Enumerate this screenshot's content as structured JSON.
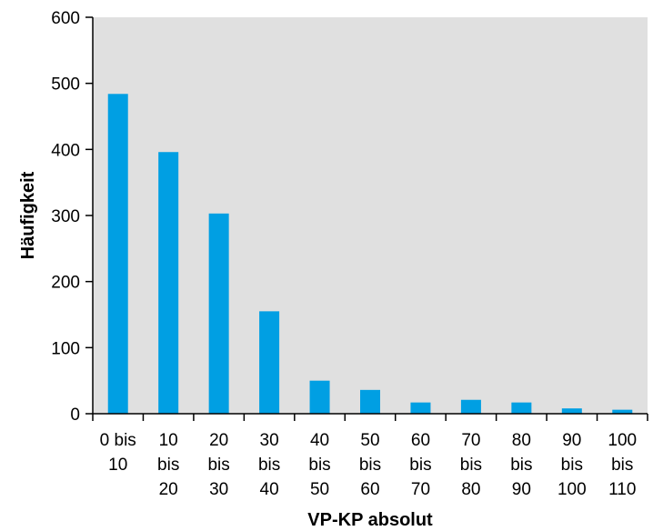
{
  "chart_data": {
    "type": "bar",
    "title": "",
    "xlabel": "VP-KP absolut",
    "ylabel": "Häufigkeit",
    "ylim": [
      0,
      600
    ],
    "yticks": [
      0,
      100,
      200,
      300,
      400,
      500,
      600
    ],
    "categories": [
      [
        "0 bis",
        "10"
      ],
      [
        "10",
        "bis",
        "20"
      ],
      [
        "20",
        "bis",
        "30"
      ],
      [
        "30",
        "bis",
        "40"
      ],
      [
        "40",
        "bis",
        "50"
      ],
      [
        "50",
        "bis",
        "60"
      ],
      [
        "60",
        "bis",
        "70"
      ],
      [
        "70",
        "bis",
        "80"
      ],
      [
        "80",
        "bis",
        "90"
      ],
      [
        "90",
        "bis",
        "100"
      ],
      [
        "100",
        "bis",
        "110"
      ]
    ],
    "values": [
      484,
      396,
      303,
      155,
      50,
      36,
      17,
      21,
      17,
      8,
      6
    ],
    "grid": false,
    "colors": {
      "bar": "#009FE3",
      "plot_background": "#E0E0E0",
      "axis": "#000000"
    }
  }
}
